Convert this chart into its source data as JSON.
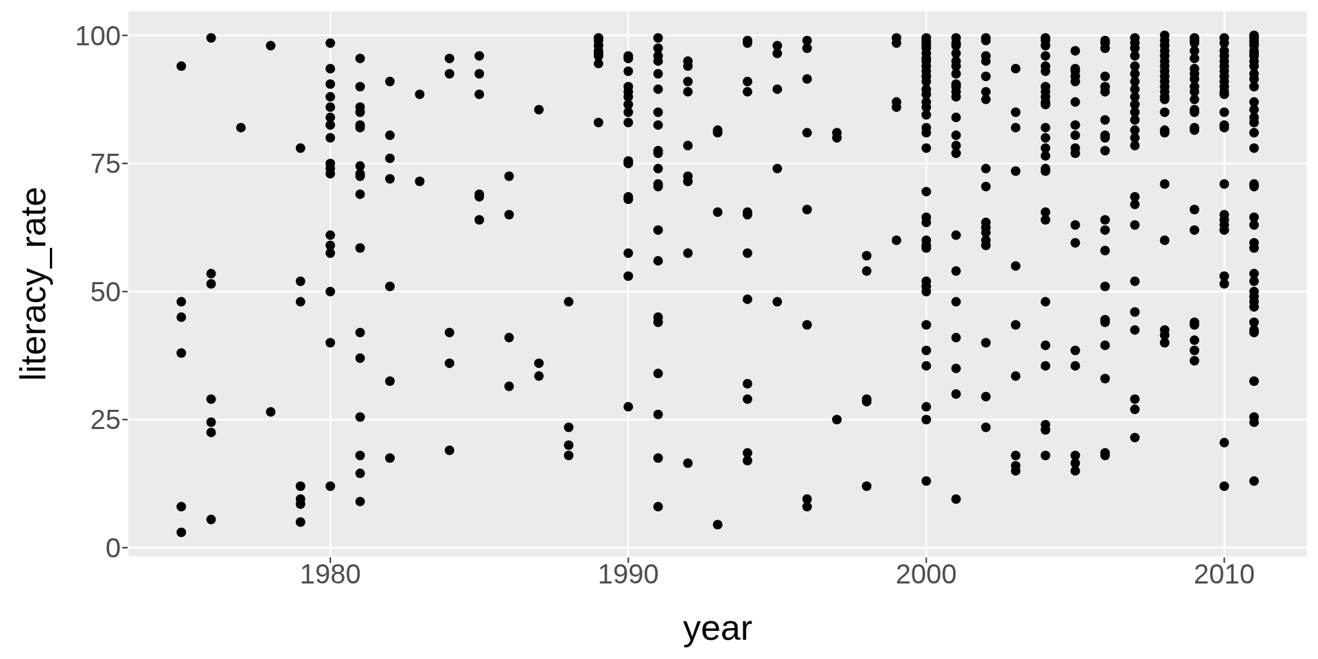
{
  "chart_data": {
    "type": "scatter",
    "xlabel": "year",
    "ylabel": "literacy_rate",
    "color": "#000000",
    "marker": "circle",
    "grid": true,
    "xlim": [
      1973.2,
      2012.8
    ],
    "xticks": [
      1980,
      1990,
      2000,
      2010
    ],
    "ylim": [
      -1.9,
      104.9
    ],
    "yticks": [
      0,
      25,
      50,
      75,
      100
    ],
    "x": [
      1975,
      1975,
      1975,
      1975,
      1975,
      1975,
      1976,
      1976,
      1976,
      1976,
      1976,
      1976,
      1976,
      1977,
      1978,
      1978,
      1979,
      1979,
      1979,
      1979,
      1979,
      1979,
      1979,
      1980,
      1980,
      1980,
      1980,
      1980,
      1980,
      1980,
      1980,
      1980,
      1980,
      1980,
      1980,
      1980,
      1980,
      1980,
      1980,
      1980,
      1981,
      1981,
      1981,
      1981,
      1981,
      1981,
      1981,
      1981,
      1981,
      1981,
      1981,
      1981,
      1981,
      1981,
      1981,
      1981,
      1981,
      1982,
      1982,
      1982,
      1982,
      1982,
      1982,
      1982,
      1983,
      1983,
      1984,
      1984,
      1984,
      1984,
      1984,
      1985,
      1985,
      1985,
      1985,
      1985,
      1985,
      1986,
      1986,
      1986,
      1986,
      1987,
      1987,
      1987,
      1988,
      1988,
      1988,
      1988,
      1989,
      1989,
      1989,
      1989,
      1989,
      1989,
      1989,
      1989,
      1990,
      1990,
      1990,
      1990,
      1990,
      1990,
      1990,
      1990,
      1990,
      1990,
      1990,
      1990,
      1990,
      1990,
      1990,
      1990,
      1991,
      1991,
      1991,
      1991,
      1991,
      1991,
      1991,
      1991,
      1991,
      1991,
      1991,
      1991,
      1991,
      1991,
      1991,
      1991,
      1991,
      1991,
      1991,
      1991,
      1991,
      1992,
      1992,
      1992,
      1992,
      1992,
      1992,
      1992,
      1992,
      1992,
      1993,
      1993,
      1993,
      1993,
      1994,
      1994,
      1994,
      1994,
      1994,
      1994,
      1994,
      1994,
      1994,
      1994,
      1994,
      1994,
      1995,
      1995,
      1995,
      1995,
      1995,
      1996,
      1996,
      1996,
      1996,
      1996,
      1996,
      1996,
      1996,
      1997,
      1997,
      1997,
      1998,
      1998,
      1998,
      1998,
      1998,
      1999,
      1999,
      1999,
      1999,
      1999,
      2000,
      2000,
      2000,
      2000,
      2000,
      2000,
      2000,
      2000,
      2000,
      2000,
      2000,
      2000,
      2000,
      2000,
      2000,
      2000,
      2000,
      2000,
      2000,
      2000,
      2000,
      2000,
      2000,
      2000,
      2000,
      2000,
      2000,
      2000,
      2000,
      2000,
      2000,
      2000,
      2000,
      2000,
      2000,
      2001,
      2001,
      2001,
      2001,
      2001,
      2001,
      2001,
      2001,
      2001,
      2001,
      2001,
      2001,
      2001,
      2001,
      2001,
      2001,
      2001,
      2001,
      2001,
      2001,
      2001,
      2001,
      2002,
      2002,
      2002,
      2002,
      2002,
      2002,
      2002,
      2002,
      2002,
      2002,
      2002,
      2002,
      2002,
      2002,
      2002,
      2002,
      2002,
      2003,
      2003,
      2003,
      2003,
      2003,
      2003,
      2003,
      2003,
      2003,
      2003,
      2004,
      2004,
      2004,
      2004,
      2004,
      2004,
      2004,
      2004,
      2004,
      2004,
      2004,
      2004,
      2004,
      2004,
      2004,
      2004,
      2004,
      2004,
      2004,
      2004,
      2004,
      2004,
      2004,
      2004,
      2004,
      2005,
      2005,
      2005,
      2005,
      2005,
      2005,
      2005,
      2005,
      2005,
      2005,
      2005,
      2005,
      2005,
      2005,
      2005,
      2005,
      2005,
      2006,
      2006,
      2006,
      2006,
      2006,
      2006,
      2006,
      2006,
      2006,
      2006,
      2006,
      2006,
      2006,
      2006,
      2006,
      2006,
      2006,
      2006,
      2006,
      2006,
      2007,
      2007,
      2007,
      2007,
      2007,
      2007,
      2007,
      2007,
      2007,
      2007,
      2007,
      2007,
      2007,
      2007,
      2007,
      2007,
      2007,
      2007,
      2007,
      2007,
      2007,
      2007,
      2007,
      2007,
      2008,
      2008,
      2008,
      2008,
      2008,
      2008,
      2008,
      2008,
      2008,
      2008,
      2008,
      2008,
      2008,
      2008,
      2008,
      2008,
      2008,
      2008,
      2008,
      2008,
      2008,
      2008,
      2009,
      2009,
      2009,
      2009,
      2009,
      2009,
      2009,
      2009,
      2009,
      2009,
      2009,
      2009,
      2009,
      2009,
      2009,
      2009,
      2009,
      2009,
      2009,
      2009,
      2009,
      2009,
      2010,
      2010,
      2010,
      2010,
      2010,
      2010,
      2010,
      2010,
      2010,
      2010,
      2010,
      2010,
      2010,
      2010,
      2010,
      2010,
      2010,
      2010,
      2010,
      2010,
      2010,
      2010,
      2010,
      2010,
      2011,
      2011,
      2011,
      2011,
      2011,
      2011,
      2011,
      2011,
      2011,
      2011,
      2011,
      2011,
      2011,
      2011,
      2011,
      2011,
      2011,
      2011,
      2011,
      2011,
      2011,
      2011,
      2011,
      2011,
      2011,
      2011,
      2011,
      2011,
      2011,
      2011,
      2011,
      2011,
      2011,
      2011,
      2011,
      2011,
      2011,
      2011
    ],
    "values": [
      94,
      48,
      45,
      38,
      8,
      3,
      99.5,
      53.5,
      51.5,
      29,
      24.5,
      22.5,
      5.5,
      82,
      98,
      26.5,
      78,
      52,
      48,
      12,
      9.5,
      8.5,
      5,
      98.5,
      93.5,
      90.5,
      88,
      86,
      84,
      82.5,
      80,
      75,
      74,
      73,
      61,
      59,
      57.5,
      50,
      40,
      12,
      95.5,
      90,
      86,
      85,
      82.5,
      82,
      74.5,
      73,
      72.5,
      69,
      58.5,
      42,
      37,
      25.5,
      18,
      14.5,
      9,
      91,
      80.5,
      76,
      72,
      51,
      32.5,
      17.5,
      88.5,
      71.5,
      95.5,
      92.5,
      42,
      36,
      19,
      96,
      92.5,
      88.5,
      69,
      68.5,
      64,
      72.5,
      65,
      41,
      31.5,
      85.5,
      36,
      33.5,
      48,
      23.5,
      20,
      18,
      99.5,
      99,
      98,
      97,
      96.5,
      96,
      94.5,
      83,
      96,
      95.5,
      93,
      90,
      89,
      88,
      86.5,
      85,
      83,
      75.5,
      75,
      68.5,
      68,
      57.5,
      53,
      27.5,
      99.5,
      97.5,
      96,
      95,
      92.5,
      89.5,
      85,
      82.5,
      77.5,
      77,
      74,
      71,
      70.5,
      62,
      56,
      45,
      44,
      34,
      26,
      17.5,
      8,
      95,
      94,
      91,
      89,
      78.5,
      72.5,
      71.5,
      57.5,
      16.5,
      81.5,
      81,
      65.5,
      4.5,
      99,
      98.5,
      91,
      89,
      65.5,
      65,
      57.5,
      48.5,
      32,
      29,
      18.5,
      17,
      98,
      96.5,
      89.5,
      74,
      48,
      99,
      97.5,
      91.5,
      81,
      66,
      43.5,
      9.5,
      8,
      81,
      80,
      25,
      57,
      54,
      29,
      28.5,
      12,
      99.5,
      98.5,
      87,
      86,
      60,
      99.5,
      99,
      98.5,
      98,
      97.5,
      96.5,
      95.5,
      95,
      94,
      93,
      92,
      91,
      89.5,
      88.5,
      87,
      86,
      84.5,
      82,
      81,
      78,
      69.5,
      64.5,
      63.5,
      60,
      59,
      58.5,
      52,
      51,
      50,
      43.5,
      38.5,
      35.5,
      27.5,
      25,
      13,
      99.5,
      98.5,
      98,
      96.5,
      95,
      94,
      92.5,
      90.5,
      90,
      89,
      88,
      84,
      80.5,
      78.5,
      77,
      61,
      54,
      48,
      41,
      35,
      30,
      9.5,
      99.5,
      99,
      96,
      95,
      92,
      89,
      87.5,
      74,
      70.5,
      63.5,
      62.5,
      61.5,
      60,
      59,
      40,
      29.5,
      23.5,
      93.5,
      85,
      82,
      73.5,
      55,
      43.5,
      33.5,
      18,
      16,
      15,
      99.5,
      99,
      98,
      96,
      94,
      93,
      90,
      89,
      88,
      87,
      86.5,
      82,
      80,
      78,
      76.5,
      74,
      73.5,
      65.5,
      64,
      48,
      39.5,
      35.5,
      24,
      23,
      18,
      97,
      93.5,
      93,
      92,
      91,
      87,
      82.5,
      80.5,
      78,
      77,
      63,
      59.5,
      38.5,
      35.5,
      18,
      16.5,
      15,
      99,
      98.5,
      97.5,
      92,
      90,
      89,
      83.5,
      80.5,
      80,
      77.5,
      64,
      62,
      58,
      51,
      44.5,
      44,
      39.5,
      33,
      18.5,
      18,
      99.5,
      98.5,
      97.5,
      96,
      94,
      92.5,
      91,
      89.5,
      88,
      86.5,
      85,
      83.5,
      81.5,
      80,
      78.5,
      68.5,
      67,
      63,
      52,
      46,
      42.5,
      29,
      27,
      21.5,
      100,
      99,
      98,
      97,
      96,
      95,
      94,
      93,
      92,
      91,
      90,
      89,
      88,
      87.5,
      85,
      81.5,
      81,
      71,
      60,
      42.5,
      41.5,
      40,
      99.5,
      99,
      98.5,
      97,
      95.5,
      93.5,
      92.5,
      91.5,
      90,
      89,
      87.5,
      85.5,
      85,
      82,
      81.5,
      66,
      62,
      44,
      43.5,
      40.5,
      38.5,
      36.5,
      99.5,
      98.5,
      97,
      96,
      95,
      94,
      93,
      92,
      91,
      90,
      89,
      88.5,
      85,
      82.5,
      82,
      71,
      65,
      64,
      63,
      62,
      53,
      51.5,
      20.5,
      12,
      100,
      99.5,
      99,
      98.5,
      98,
      97,
      96.5,
      96,
      95,
      94,
      92.5,
      91.5,
      90,
      87,
      85.5,
      84,
      83,
      81,
      78,
      71,
      70.5,
      64.5,
      63,
      59.5,
      58.5,
      53.5,
      52,
      50,
      49,
      48,
      47,
      44,
      42.5,
      42,
      32.5,
      25.5,
      24.5,
      13
    ]
  }
}
